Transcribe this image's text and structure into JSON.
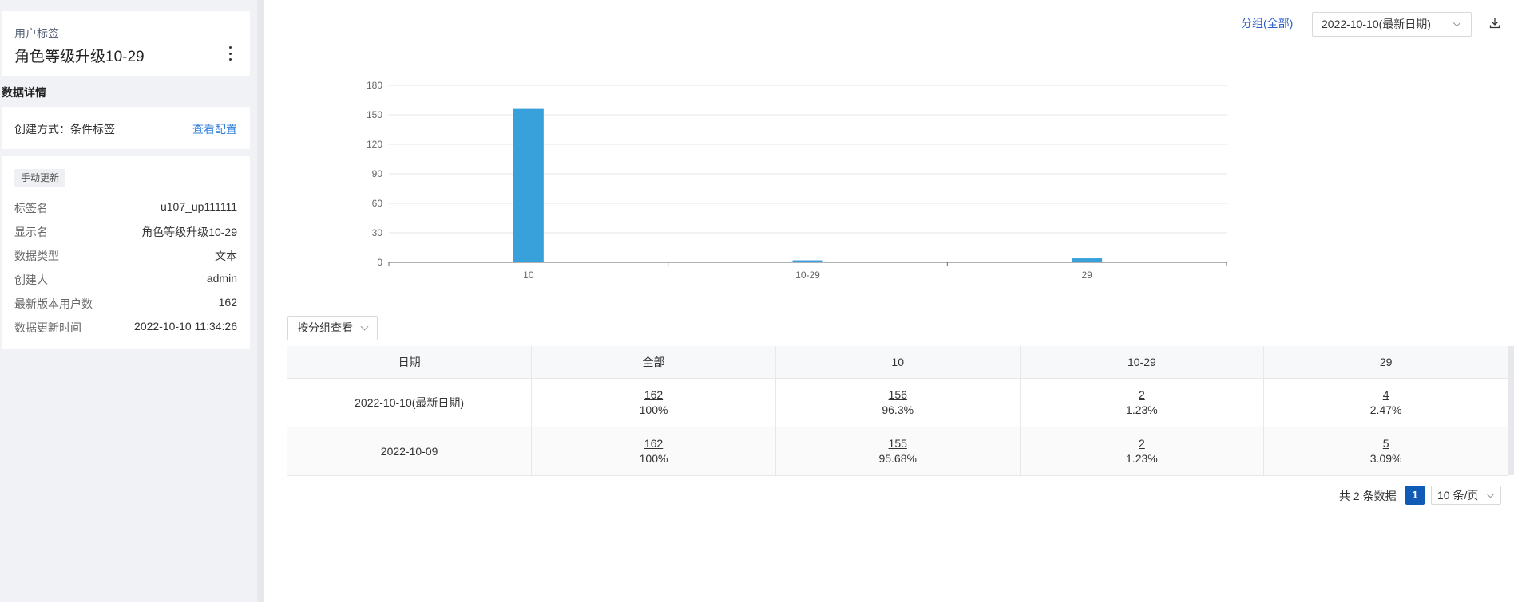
{
  "sidebar": {
    "header": {
      "subtitle": "用户标签",
      "title": "角色等级升级10-29"
    },
    "section_title": "数据详情",
    "create": {
      "label": "创建方式：条件标签",
      "link": "查看配置"
    },
    "detail": {
      "badge": "手动更新",
      "rows": [
        {
          "key": "标签名",
          "value": "u107_up111111"
        },
        {
          "key": "显示名",
          "value": "角色等级升级10-29"
        },
        {
          "key": "数据类型",
          "value": "文本"
        },
        {
          "key": "创建人",
          "value": "admin"
        },
        {
          "key": "最新版本用户数",
          "value": "162"
        },
        {
          "key": "数据更新时间",
          "value": "2022-10-10 11:34:26"
        }
      ]
    }
  },
  "toolbar": {
    "group_link": "分组(全部)",
    "date_select": "2022-10-10(最新日期)"
  },
  "chart_data": {
    "type": "bar",
    "categories": [
      "10",
      "10-29",
      "29"
    ],
    "values": [
      156,
      2,
      4
    ],
    "title": "",
    "xlabel": "",
    "ylabel": "",
    "ylim": [
      0,
      180
    ],
    "yticks": [
      "0",
      "30",
      "60",
      "90",
      "120",
      "150",
      "180"
    ],
    "grid": true,
    "color": "#38a1dc"
  },
  "group_select": "按分组查看",
  "table": {
    "headers": [
      "日期",
      "全部",
      "10",
      "10-29",
      "29"
    ],
    "rows": [
      {
        "date": "2022-10-10(最新日期)",
        "cells": [
          {
            "num": "162",
            "pct": "100%"
          },
          {
            "num": "156",
            "pct": "96.3%"
          },
          {
            "num": "2",
            "pct": "1.23%"
          },
          {
            "num": "4",
            "pct": "2.47%"
          }
        ]
      },
      {
        "date": "2022-10-09",
        "cells": [
          {
            "num": "162",
            "pct": "100%"
          },
          {
            "num": "155",
            "pct": "95.68%"
          },
          {
            "num": "2",
            "pct": "1.23%"
          },
          {
            "num": "5",
            "pct": "3.09%"
          }
        ]
      }
    ]
  },
  "pagination": {
    "total": "共 2 条数据",
    "current": "1",
    "page_size": "10 条/页"
  }
}
